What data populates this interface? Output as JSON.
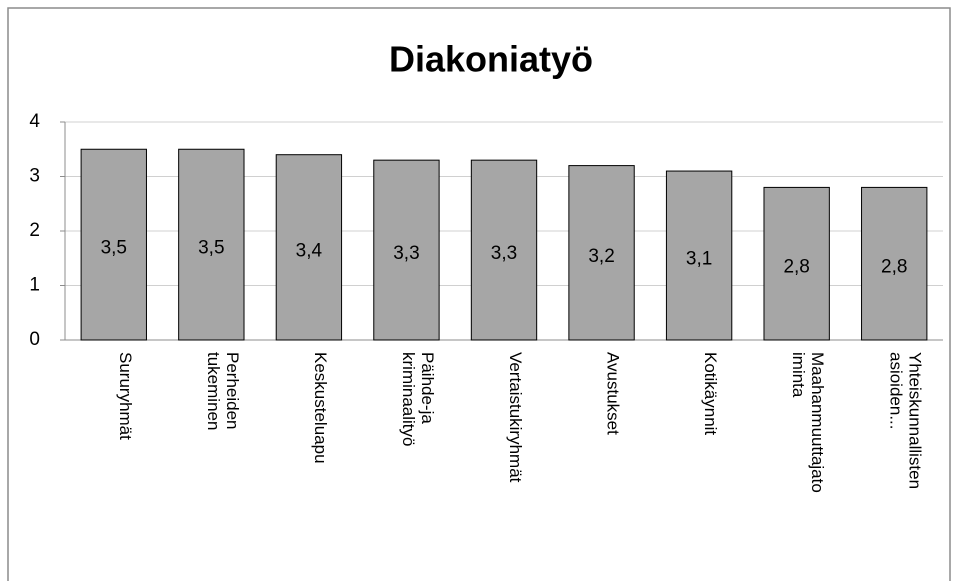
{
  "chart_data": {
    "type": "bar",
    "title": "Diakoniatyö",
    "categories": [
      "Sururyhmät",
      "Perheiden\ntukeminen",
      "Keskusteluapu",
      "Päihde-ja\nkriminaalityö",
      "Vertaistukiryhmät",
      "Avustukset",
      "Kotikäynnit",
      "Maahanmuuttajato\niminta",
      "Yhteiskunnallisten\nasioiden..."
    ],
    "values": [
      3.5,
      3.5,
      3.4,
      3.3,
      3.3,
      3.2,
      3.1,
      2.8,
      2.8
    ],
    "value_labels": [
      "3,5",
      "3,5",
      "3,4",
      "3,3",
      "3,3",
      "3,2",
      "3,1",
      "2,8",
      "2,8"
    ],
    "color": "#a6a6a6",
    "ylim": [
      0,
      4
    ],
    "yticks": [
      0,
      1,
      2,
      3,
      4
    ],
    "grid": true
  }
}
